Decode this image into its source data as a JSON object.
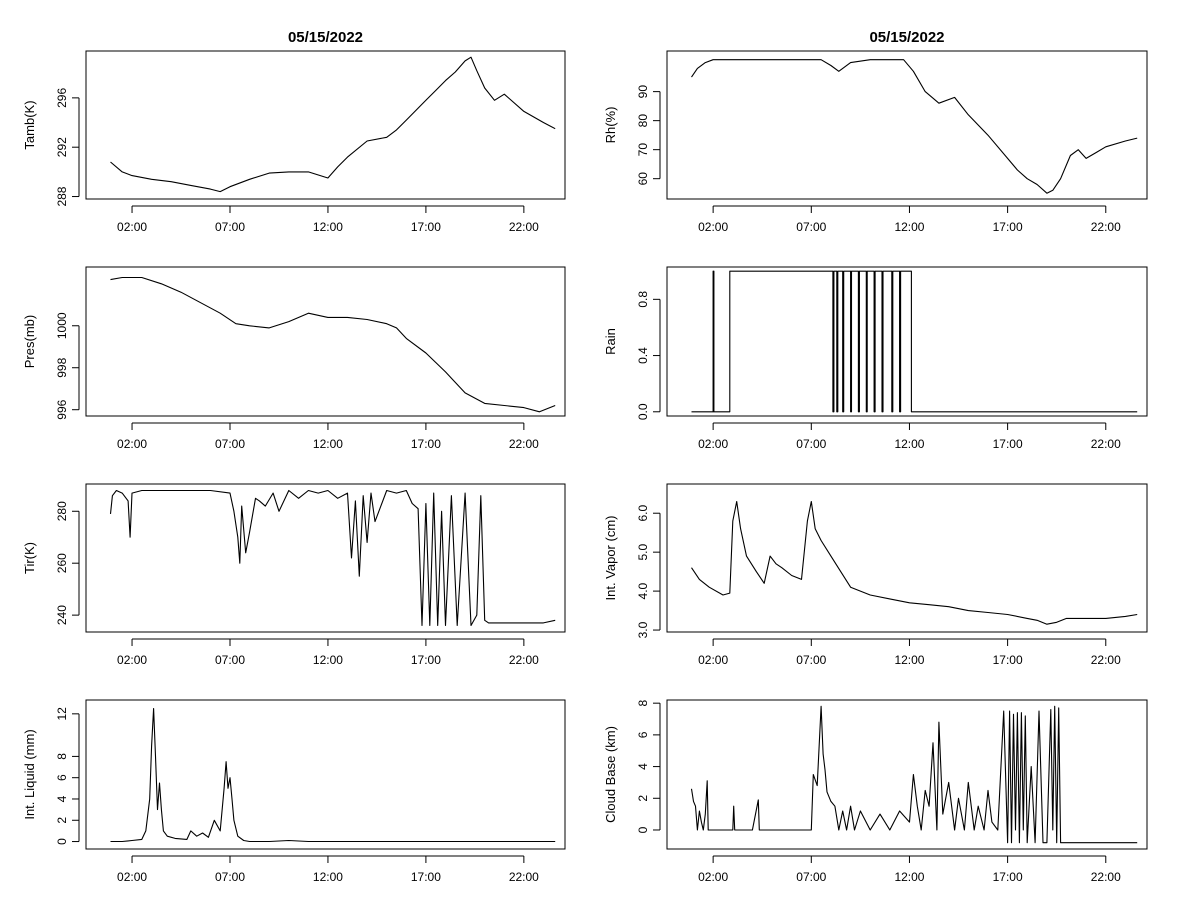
{
  "figure": {
    "date_label": "05/15/2022"
  },
  "chart_data": [
    {
      "id": "tamb",
      "type": "line",
      "title": "05/15/2022",
      "ylabel": "Tamb(K)",
      "xlim": [
        -0.35,
        24.1
      ],
      "ylim": [
        287.8,
        299.8
      ],
      "xticks": [
        2,
        7,
        12,
        17,
        22
      ],
      "xticklabels": [
        "02:00",
        "07:00",
        "12:00",
        "17:00",
        "22:00"
      ],
      "yticks": [
        288,
        292,
        296
      ],
      "yticklabels": [
        "288",
        "292",
        "296"
      ],
      "series": [
        {
          "name": "Tamb",
          "x": [
            0.9,
            1.5,
            2,
            3,
            4,
            5,
            6,
            6.5,
            7,
            8,
            9,
            10,
            11,
            12,
            12.5,
            13,
            14,
            15,
            15.5,
            16,
            17,
            17.5,
            18,
            18.5,
            19,
            19.3,
            19.6,
            20,
            20.5,
            21,
            22,
            23,
            23.6
          ],
          "y": [
            290.8,
            290.0,
            289.7,
            289.4,
            289.2,
            288.9,
            288.6,
            288.4,
            288.8,
            289.4,
            289.9,
            290.0,
            290.0,
            289.5,
            290.4,
            291.2,
            292.5,
            292.8,
            293.4,
            294.2,
            295.8,
            296.6,
            297.4,
            298.1,
            299.0,
            299.3,
            298.2,
            296.8,
            295.8,
            296.3,
            294.9,
            294.0,
            293.5
          ]
        }
      ]
    },
    {
      "id": "rh",
      "type": "line",
      "title": "05/15/2022",
      "ylabel": "Rh(%)",
      "xlim": [
        -0.35,
        24.1
      ],
      "ylim": [
        53,
        104
      ],
      "xticks": [
        2,
        7,
        12,
        17,
        22
      ],
      "xticklabels": [
        "02:00",
        "07:00",
        "12:00",
        "17:00",
        "22:00"
      ],
      "yticks": [
        60,
        70,
        80,
        90
      ],
      "yticklabels": [
        "60",
        "70",
        "80",
        "90"
      ],
      "series": [
        {
          "name": "Rh",
          "x": [
            0.9,
            1.2,
            1.6,
            2,
            3,
            5,
            7,
            7.5,
            8,
            8.4,
            9,
            10,
            11,
            11.7,
            12.2,
            12.8,
            13.5,
            14.3,
            15,
            16,
            17,
            17.5,
            18,
            18.5,
            19,
            19.3,
            19.7,
            20.2,
            20.6,
            21,
            21.5,
            22,
            23,
            23.6
          ],
          "y": [
            95,
            98,
            100,
            101,
            101,
            101,
            101,
            101,
            99,
            97,
            100,
            101,
            101,
            101,
            97,
            90,
            86,
            88,
            82,
            75,
            67,
            63,
            60,
            58,
            55,
            56,
            60,
            68,
            70,
            67,
            69,
            71,
            73,
            74
          ]
        }
      ]
    },
    {
      "id": "pres",
      "type": "line",
      "title": "",
      "ylabel": "Pres(mb)",
      "xlim": [
        -0.35,
        24.1
      ],
      "ylim": [
        995.7,
        1002.8
      ],
      "xticks": [
        2,
        7,
        12,
        17,
        22
      ],
      "xticklabels": [
        "02:00",
        "07:00",
        "12:00",
        "17:00",
        "22:00"
      ],
      "yticks": [
        996,
        998,
        1000
      ],
      "yticklabels": [
        "996",
        "998",
        "1000"
      ],
      "series": [
        {
          "name": "Pres",
          "x": [
            0.9,
            1.5,
            2.5,
            3.5,
            4.5,
            5.5,
            6.5,
            7.3,
            8,
            9,
            10,
            11,
            12,
            13,
            14,
            15,
            15.5,
            16,
            17,
            18,
            19,
            20,
            21,
            22,
            22.8,
            23.6
          ],
          "y": [
            1002.2,
            1002.3,
            1002.3,
            1002.0,
            1001.6,
            1001.1,
            1000.6,
            1000.1,
            1000.0,
            999.9,
            1000.2,
            1000.6,
            1000.4,
            1000.4,
            1000.3,
            1000.1,
            999.9,
            999.4,
            998.7,
            997.8,
            996.8,
            996.3,
            996.2,
            996.1,
            995.9,
            996.2
          ]
        }
      ]
    },
    {
      "id": "rain",
      "type": "line",
      "title": "",
      "ylabel": "Rain",
      "xlim": [
        -0.35,
        24.1
      ],
      "ylim": [
        -0.03,
        1.03
      ],
      "xticks": [
        2,
        7,
        12,
        17,
        22
      ],
      "xticklabels": [
        "02:00",
        "07:00",
        "12:00",
        "17:00",
        "22:00"
      ],
      "yticks": [
        0.0,
        0.4,
        0.8
      ],
      "yticklabels": [
        "0.0",
        "0.4",
        "0.8"
      ],
      "series": [
        {
          "name": "Rain",
          "x": [
            0.9,
            2.0,
            2.0,
            2.04,
            2.04,
            2.85,
            2.85,
            8.1,
            8.1,
            8.15,
            8.15,
            8.3,
            8.3,
            8.35,
            8.35,
            8.6,
            8.6,
            8.65,
            8.65,
            9.0,
            9.0,
            9.05,
            9.05,
            9.4,
            9.4,
            9.45,
            9.45,
            9.8,
            9.8,
            9.85,
            9.85,
            10.2,
            10.2,
            10.25,
            10.25,
            10.6,
            10.6,
            10.65,
            10.65,
            11.1,
            11.1,
            11.15,
            11.15,
            11.5,
            11.5,
            11.55,
            11.55,
            12.1,
            12.1,
            23.6
          ],
          "y": [
            0,
            0,
            1,
            1,
            0,
            0,
            1,
            1,
            0,
            0,
            1,
            1,
            0,
            0,
            1,
            1,
            0,
            0,
            1,
            1,
            0,
            0,
            1,
            1,
            0,
            0,
            1,
            1,
            0,
            0,
            1,
            1,
            0,
            0,
            1,
            1,
            0,
            0,
            1,
            1,
            0,
            0,
            1,
            1,
            0,
            0,
            1,
            1,
            0,
            0
          ]
        }
      ]
    },
    {
      "id": "tir",
      "type": "line",
      "title": "",
      "ylabel": "Tir(K)",
      "xlim": [
        -0.35,
        24.1
      ],
      "ylim": [
        233.5,
        290.5
      ],
      "xticks": [
        2,
        7,
        12,
        17,
        22
      ],
      "xticklabels": [
        "02:00",
        "07:00",
        "12:00",
        "17:00",
        "22:00"
      ],
      "yticks": [
        240,
        260,
        280
      ],
      "yticklabels": [
        "240",
        "260",
        "280"
      ],
      "series": [
        {
          "name": "Tir",
          "x": [
            0.9,
            1.0,
            1.2,
            1.5,
            1.8,
            1.9,
            2.0,
            2.5,
            4,
            6,
            7.0,
            7.2,
            7.4,
            7.5,
            7.6,
            7.8,
            8.0,
            8.3,
            8.5,
            8.8,
            9.2,
            9.5,
            10,
            10.5,
            11,
            11.5,
            12,
            12.5,
            13,
            13.2,
            13.4,
            13.6,
            13.8,
            14.0,
            14.2,
            14.4,
            15,
            15.5,
            16,
            16.3,
            16.6,
            16.8,
            17.0,
            17.2,
            17.4,
            17.6,
            17.8,
            18.0,
            18.3,
            18.6,
            19.0,
            19.3,
            19.6,
            19.8,
            20.0,
            20.2,
            21,
            22,
            23,
            23.6
          ],
          "y": [
            279,
            286,
            288,
            287,
            284,
            270,
            287,
            288,
            288,
            288,
            287,
            280,
            270,
            260,
            282,
            264,
            272,
            285,
            284,
            282,
            287,
            280,
            288,
            285,
            288,
            287,
            288,
            285,
            287,
            262,
            284,
            255,
            286,
            268,
            287,
            276,
            288,
            287,
            288,
            283,
            281,
            236,
            283,
            236,
            287,
            236,
            280,
            236,
            286,
            236,
            287,
            236,
            240,
            286,
            238,
            237,
            237,
            237,
            237,
            238
          ]
        }
      ]
    },
    {
      "id": "vapor",
      "type": "line",
      "title": "",
      "ylabel": "Int. Vapor (cm)",
      "xlim": [
        -0.35,
        24.1
      ],
      "ylim": [
        2.95,
        6.75
      ],
      "xticks": [
        2,
        7,
        12,
        17,
        22
      ],
      "xticklabels": [
        "02:00",
        "07:00",
        "12:00",
        "17:00",
        "22:00"
      ],
      "yticks": [
        3.0,
        4.0,
        5.0,
        6.0
      ],
      "yticklabels": [
        "3.0",
        "4.0",
        "5.0",
        "6.0"
      ],
      "series": [
        {
          "name": "Vapor",
          "x": [
            0.9,
            1.3,
            1.8,
            2.5,
            2.85,
            3.0,
            3.2,
            3.4,
            3.7,
            4.2,
            4.6,
            4.9,
            5.2,
            5.5,
            6.0,
            6.5,
            6.8,
            7.0,
            7.2,
            7.5,
            8.0,
            8.5,
            9,
            10,
            11,
            12,
            13,
            14,
            15,
            16,
            17,
            18,
            18.5,
            19,
            19.5,
            20,
            21,
            22,
            23,
            23.6
          ],
          "y": [
            4.6,
            4.3,
            4.1,
            3.9,
            3.95,
            5.8,
            6.3,
            5.6,
            4.9,
            4.5,
            4.2,
            4.9,
            4.7,
            4.6,
            4.4,
            4.3,
            5.8,
            6.3,
            5.6,
            5.3,
            4.9,
            4.5,
            4.1,
            3.9,
            3.8,
            3.7,
            3.65,
            3.6,
            3.5,
            3.45,
            3.4,
            3.3,
            3.25,
            3.15,
            3.2,
            3.3,
            3.3,
            3.3,
            3.35,
            3.4
          ]
        }
      ]
    },
    {
      "id": "liquid",
      "type": "line",
      "title": "",
      "ylabel": "Int. Liquid (mm)",
      "xlim": [
        -0.35,
        24.1
      ],
      "ylim": [
        -0.7,
        13.3
      ],
      "xticks": [
        2,
        7,
        12,
        17,
        22
      ],
      "xticklabels": [
        "02:00",
        "07:00",
        "12:00",
        "17:00",
        "22:00"
      ],
      "yticks": [
        0,
        2,
        4,
        6,
        8,
        12
      ],
      "yticklabels": [
        "0",
        "2",
        "4",
        "6",
        "8",
        "12"
      ],
      "series": [
        {
          "name": "Liquid",
          "x": [
            0.9,
            1.5,
            2.0,
            2.5,
            2.7,
            2.9,
            3.0,
            3.1,
            3.2,
            3.3,
            3.4,
            3.5,
            3.6,
            3.8,
            4.2,
            4.8,
            5.0,
            5.3,
            5.6,
            5.9,
            6.2,
            6.5,
            6.7,
            6.8,
            6.9,
            7.0,
            7.1,
            7.2,
            7.4,
            7.7,
            8.0,
            9,
            10,
            11,
            12,
            14,
            17,
            20,
            23.6
          ],
          "y": [
            0,
            0,
            0.1,
            0.2,
            1,
            4,
            9,
            12.5,
            8,
            3,
            5.5,
            3,
            1,
            0.5,
            0.3,
            0.2,
            1,
            0.5,
            0.8,
            0.4,
            2,
            1,
            5,
            7.5,
            5,
            6,
            4,
            2,
            0.5,
            0.1,
            0,
            0,
            0.1,
            0,
            0,
            0,
            0,
            0,
            0
          ]
        }
      ]
    },
    {
      "id": "cloudbase",
      "type": "line",
      "title": "",
      "ylabel": "Cloud Base (km)",
      "xlim": [
        -0.35,
        24.1
      ],
      "ylim": [
        -1.2,
        8.2
      ],
      "xticks": [
        2,
        7,
        12,
        17,
        22
      ],
      "xticklabels": [
        "02:00",
        "07:00",
        "12:00",
        "17:00",
        "22:00"
      ],
      "yticks": [
        0,
        2,
        4,
        6,
        8
      ],
      "yticklabels": [
        "0",
        "2",
        "4",
        "6",
        "8"
      ],
      "series": [
        {
          "name": "CloudBase",
          "x": [
            0.9,
            1.0,
            1.1,
            1.2,
            1.3,
            1.4,
            1.5,
            1.6,
            1.7,
            1.75,
            1.8,
            2.0,
            2.5,
            3.0,
            3.05,
            3.1,
            3.5,
            4.0,
            4.3,
            4.35,
            4.4,
            5.0,
            6.0,
            7.0,
            7.1,
            7.3,
            7.5,
            7.6,
            7.7,
            7.8,
            8.0,
            8.2,
            8.4,
            8.6,
            8.8,
            9.0,
            9.2,
            9.5,
            10,
            10.5,
            11,
            11.5,
            12,
            12.2,
            12.4,
            12.6,
            12.8,
            13.0,
            13.2,
            13.4,
            13.5,
            13.7,
            14,
            14.3,
            14.5,
            14.8,
            15,
            15.3,
            15.5,
            15.8,
            16,
            16.2,
            16.5,
            16.8,
            17.0,
            17.1,
            17.2,
            17.3,
            17.4,
            17.5,
            17.6,
            17.7,
            17.8,
            17.9,
            18.0,
            18.2,
            18.4,
            18.6,
            18.8,
            19.0,
            19.2,
            19.3,
            19.4,
            19.5,
            19.6,
            19.7,
            19.8,
            19.9,
            20.0,
            20.1,
            20.5,
            21,
            22,
            23,
            23.6
          ],
          "y": [
            2.6,
            1.8,
            1.5,
            0,
            1.2,
            0.5,
            0,
            1.0,
            3.1,
            0,
            0,
            0,
            0,
            0,
            1.5,
            0,
            0,
            0,
            1.9,
            0,
            0,
            0,
            0,
            0,
            3.5,
            2.8,
            7.8,
            4.8,
            3.8,
            2.4,
            1.8,
            1.5,
            0,
            1.2,
            0,
            1.5,
            0,
            1.2,
            0,
            1.0,
            0,
            1.2,
            0.5,
            3.5,
            1.5,
            0,
            2.5,
            1.5,
            5.5,
            0,
            6.8,
            1.0,
            3.0,
            0,
            2.0,
            0,
            3.0,
            0,
            1.5,
            0,
            2.5,
            0.5,
            0,
            7.5,
            -0.8,
            7.5,
            -0.8,
            7.3,
            0,
            7.4,
            -0.8,
            7.4,
            0,
            7.2,
            -0.8,
            4.0,
            -0.8,
            7.5,
            -0.8,
            -0.8,
            7.6,
            0,
            7.8,
            -0.8,
            7.7,
            -0.8,
            -0.8,
            -0.8,
            -0.8,
            -0.8,
            -0.8,
            -0.8,
            -0.8,
            -0.8,
            -0.8
          ]
        }
      ]
    }
  ]
}
